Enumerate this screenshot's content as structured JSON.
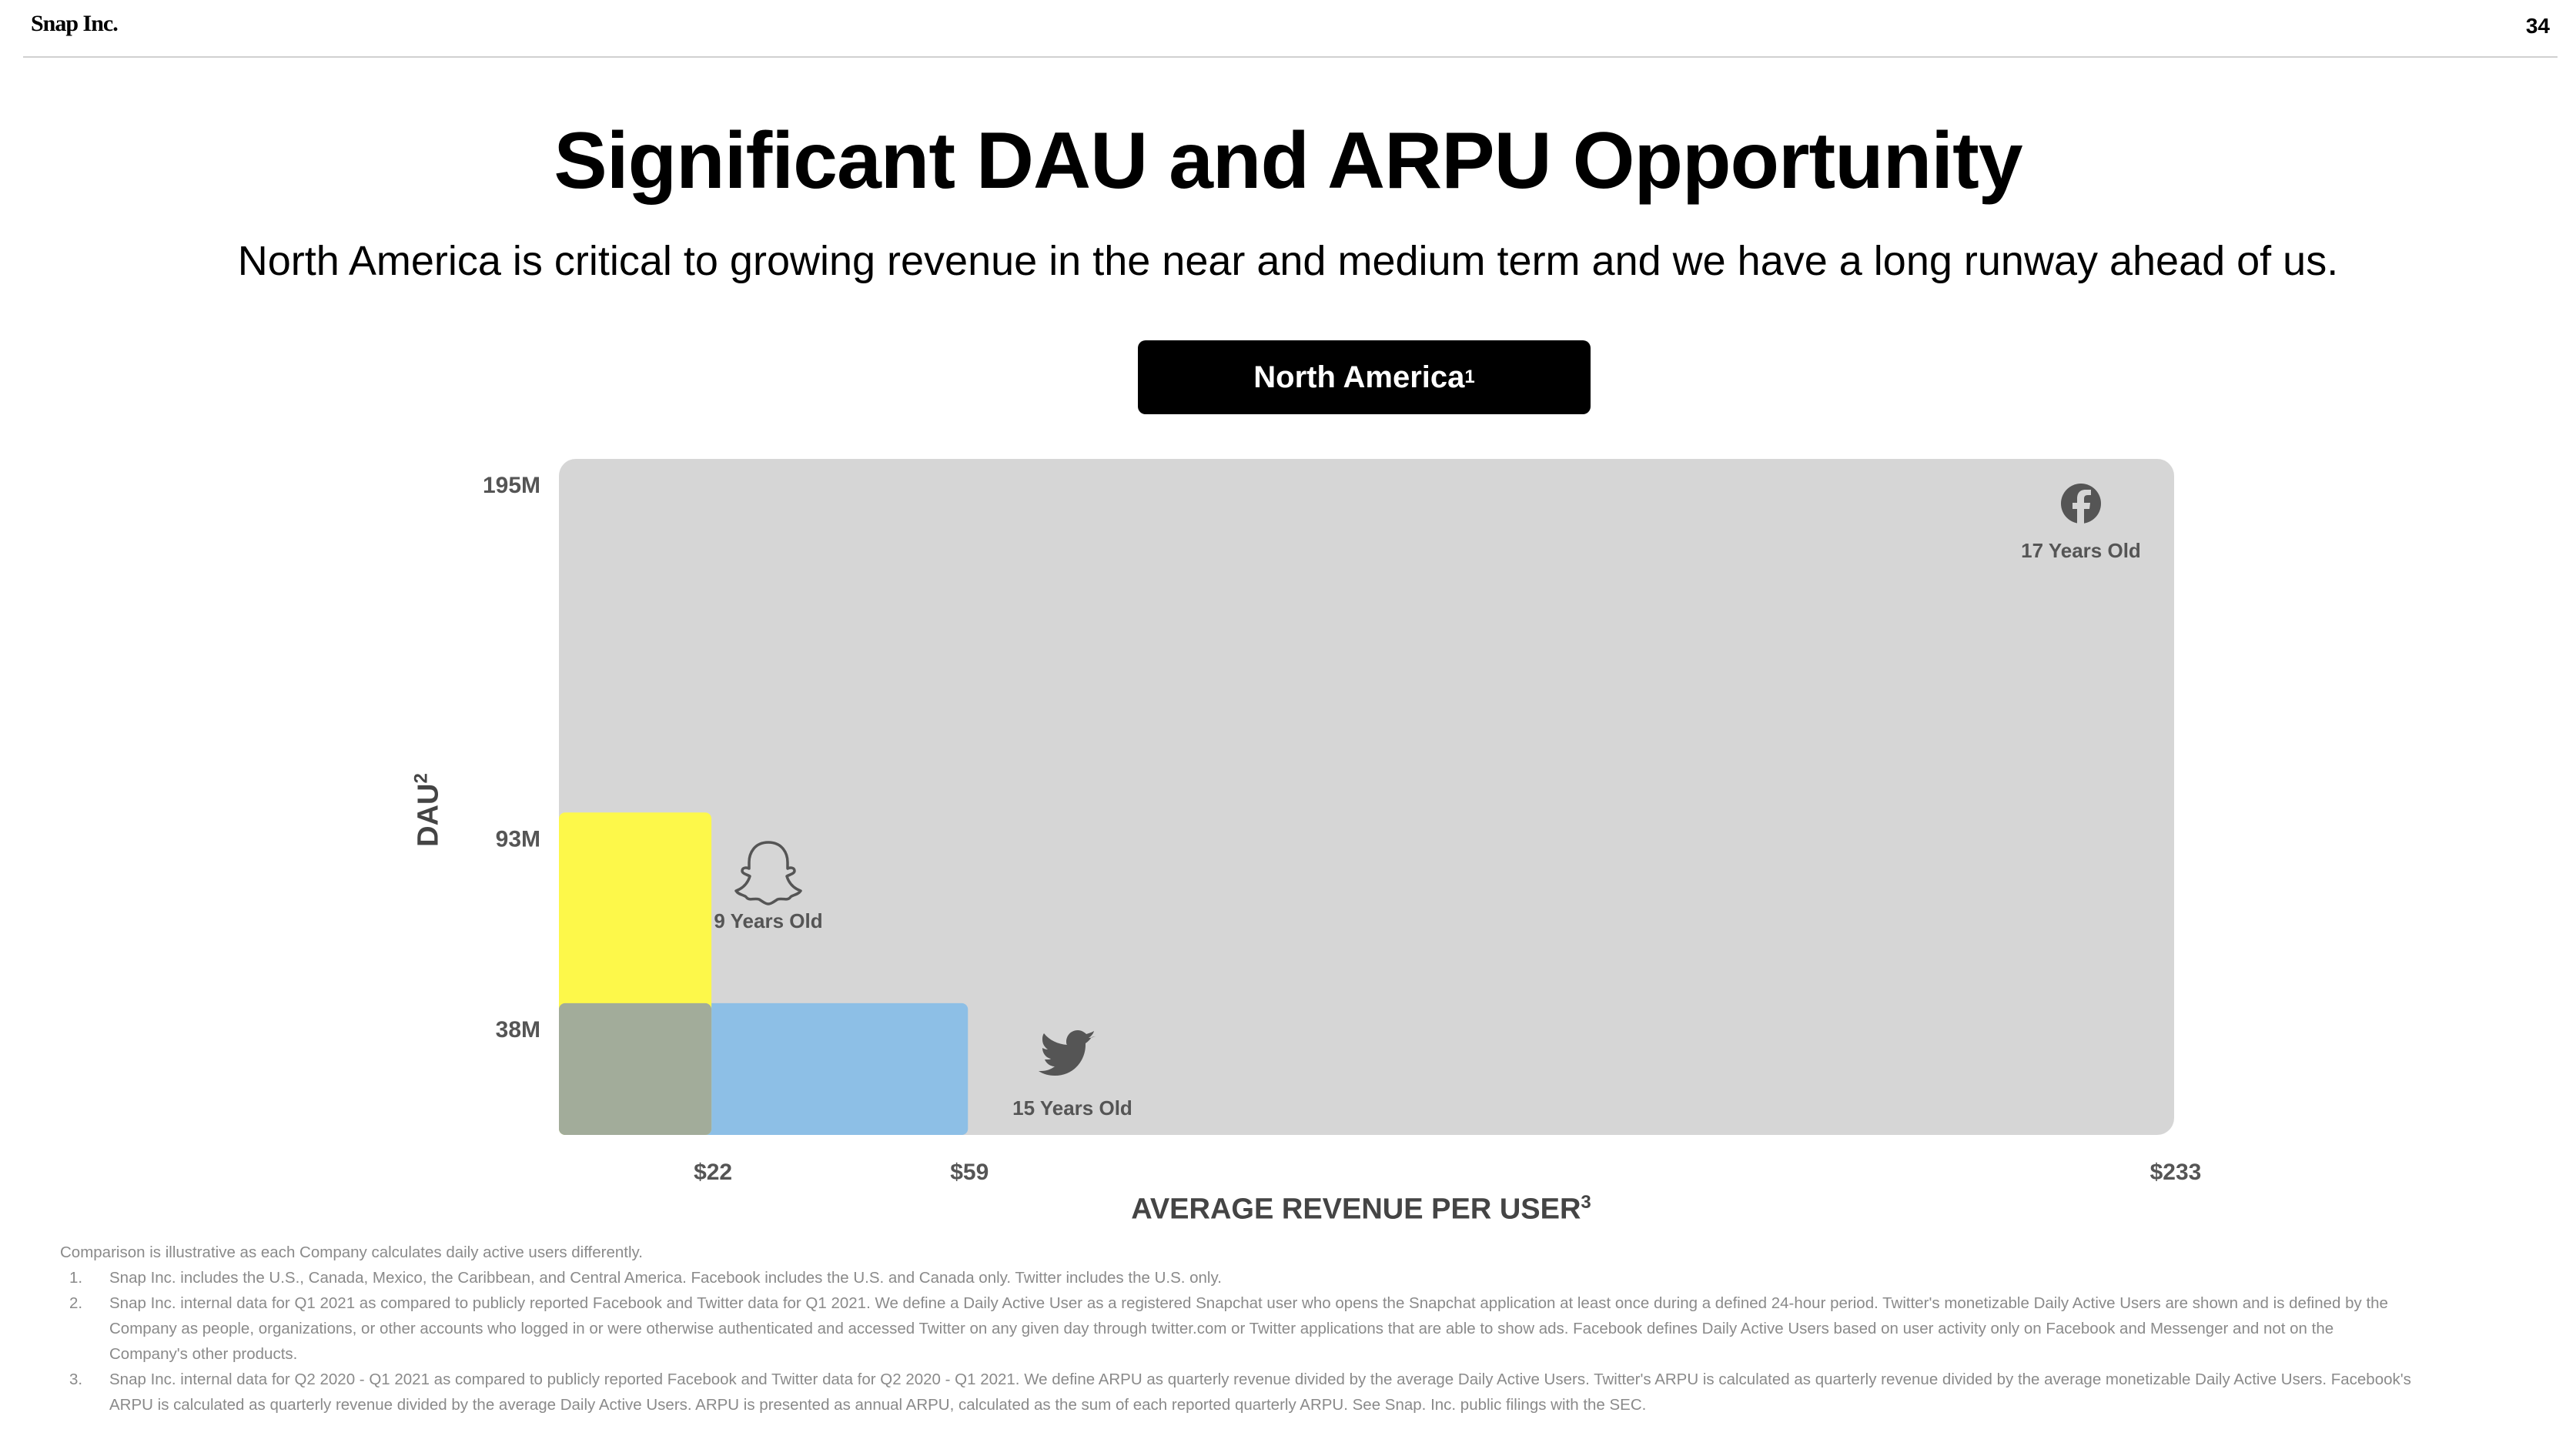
{
  "header": {
    "logo": "Snap Inc.",
    "page_number": "34"
  },
  "title": "Significant DAU and ARPU Opportunity",
  "subtitle": "North America is critical to growing revenue in the near and medium term and we have a long runway ahead of us.",
  "region_badge": {
    "label": "North America",
    "sup": "1"
  },
  "colors": {
    "snap": "#fdf84a",
    "twitter": "#8dbfe6",
    "overlap": "#a2ac9a",
    "facebook_area": "#d6d6d6",
    "label_text": "#555555"
  },
  "chart_data": {
    "type": "area",
    "ylabel": "DAU",
    "ylabel_sup": "2",
    "xlabel": "AVERAGE REVENUE PER USER",
    "xlabel_sup": "3",
    "y_ticks": [
      {
        "value": 38,
        "label": "38M"
      },
      {
        "value": 93,
        "label": "93M"
      },
      {
        "value": 195,
        "label": "195M"
      }
    ],
    "x_ticks": [
      {
        "value": 22,
        "label": "$22"
      },
      {
        "value": 59,
        "label": "$59"
      },
      {
        "value": 233,
        "label": "$233"
      }
    ],
    "series": [
      {
        "company": "Facebook",
        "icon": "facebook-icon",
        "arpu": 233,
        "dau": 195,
        "age_label": "17 Years Old"
      },
      {
        "company": "Twitter",
        "icon": "twitter-icon",
        "arpu": 59,
        "dau": 38,
        "age_label": "15 Years Old"
      },
      {
        "company": "Snapchat",
        "icon": "snapchat-ghost-icon",
        "arpu": 22,
        "dau": 93,
        "age_label": "9 Years Old"
      }
    ]
  },
  "footnotes": {
    "intro": "Comparison is illustrative as each Company calculates daily active users differently.",
    "items": [
      {
        "num": "1.",
        "lines": [
          "Snap Inc. includes the U.S., Canada, Mexico, the Caribbean, and Central America. Facebook includes the U.S. and Canada only. Twitter includes the U.S. only."
        ]
      },
      {
        "num": "2.",
        "lines": [
          "Snap Inc. internal data for Q1 2021 as compared to publicly reported Facebook and Twitter data for Q1 2021. We define a Daily Active User as a registered Snapchat user who opens the Snapchat application at least once during a defined 24-hour period. Twitter's monetizable Daily Active Users are",
          "shown and is defined by the Company as people, organizations, or other accounts who logged in or were otherwise authenticated and accessed Twitter on any given day through twitter.com or Twitter applications that are able to show ads. Facebook defines Daily Active Users based on user activity",
          "only on Facebook and Messenger and not on the Company's other products."
        ]
      },
      {
        "num": "3.",
        "lines": [
          "Snap Inc. internal data for Q2 2020 - Q1 2021 as compared to publicly reported Facebook and Twitter data for Q2 2020 - Q1 2021. We define ARPU as quarterly revenue divided by the average Daily Active Users. Twitter's ARPU is calculated as quarterly revenue divided by the average monetizable",
          "Daily Active Users. Facebook's ARPU is calculated as quarterly revenue divided by the average Daily Active Users. ARPU is presented as annual ARPU, calculated as the sum of each reported quarterly ARPU. See Snap. Inc. public filings with the SEC."
        ]
      }
    ]
  }
}
